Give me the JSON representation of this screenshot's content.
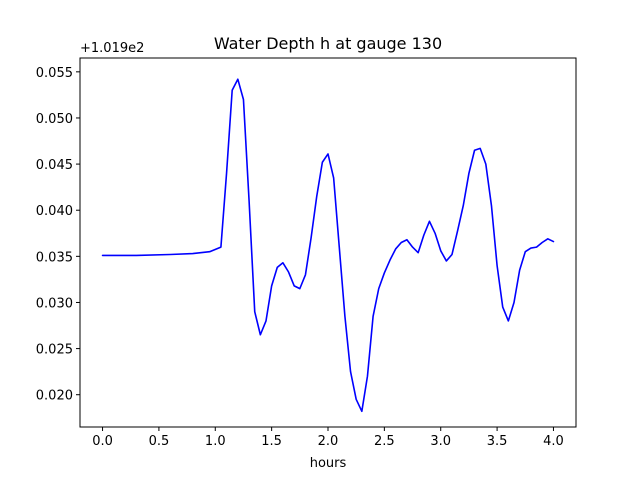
{
  "chart_data": {
    "type": "line",
    "title": "Water Depth h at gauge 130",
    "xlabel": "hours",
    "ylabel": "",
    "y_offset_label": "+1.019e2",
    "y_offset": 101.9,
    "xlim": [
      -0.2,
      4.2
    ],
    "ylim": [
      0.0165,
      0.0565
    ],
    "x_ticks": [
      0.0,
      0.5,
      1.0,
      1.5,
      2.0,
      2.5,
      3.0,
      3.5,
      4.0
    ],
    "x_tick_labels": [
      "0.0",
      "0.5",
      "1.0",
      "1.5",
      "2.0",
      "2.5",
      "3.0",
      "3.5",
      "4.0"
    ],
    "y_ticks": [
      0.02,
      0.025,
      0.03,
      0.035,
      0.04,
      0.045,
      0.05,
      0.055
    ],
    "y_tick_labels": [
      "0.020",
      "0.025",
      "0.030",
      "0.035",
      "0.040",
      "0.045",
      "0.050",
      "0.055"
    ],
    "grid": false,
    "line_color": "#0000ff",
    "series": [
      {
        "x": [
          0.0,
          0.3,
          0.6,
          0.8,
          0.95,
          1.05,
          1.1,
          1.15,
          1.2,
          1.25,
          1.3,
          1.35,
          1.4,
          1.45,
          1.5,
          1.55,
          1.6,
          1.65,
          1.7,
          1.75,
          1.8,
          1.85,
          1.9,
          1.95,
          2.0,
          2.05,
          2.1,
          2.15,
          2.2,
          2.25,
          2.3,
          2.35,
          2.4,
          2.45,
          2.5,
          2.55,
          2.6,
          2.65,
          2.7,
          2.75,
          2.8,
          2.85,
          2.9,
          2.95,
          3.0,
          3.05,
          3.1,
          3.15,
          3.2,
          3.25,
          3.3,
          3.35,
          3.4,
          3.45,
          3.5,
          3.55,
          3.6,
          3.65,
          3.7,
          3.75,
          3.8,
          3.85,
          3.9,
          3.95,
          4.0
        ],
        "y": [
          0.0351,
          0.0351,
          0.0352,
          0.0353,
          0.0355,
          0.036,
          0.044,
          0.053,
          0.0542,
          0.052,
          0.041,
          0.029,
          0.0265,
          0.028,
          0.0318,
          0.0338,
          0.0343,
          0.0333,
          0.0318,
          0.0315,
          0.033,
          0.037,
          0.0415,
          0.0452,
          0.0461,
          0.0435,
          0.036,
          0.0285,
          0.0225,
          0.0195,
          0.0182,
          0.022,
          0.0285,
          0.0315,
          0.0332,
          0.0346,
          0.0358,
          0.0365,
          0.0368,
          0.036,
          0.0354,
          0.0373,
          0.0388,
          0.0375,
          0.0356,
          0.0345,
          0.0352,
          0.0378,
          0.0405,
          0.044,
          0.0465,
          0.0467,
          0.045,
          0.0405,
          0.034,
          0.0295,
          0.028,
          0.03,
          0.0335,
          0.0355,
          0.0359,
          0.036,
          0.0365,
          0.0369,
          0.0366
        ]
      }
    ]
  }
}
